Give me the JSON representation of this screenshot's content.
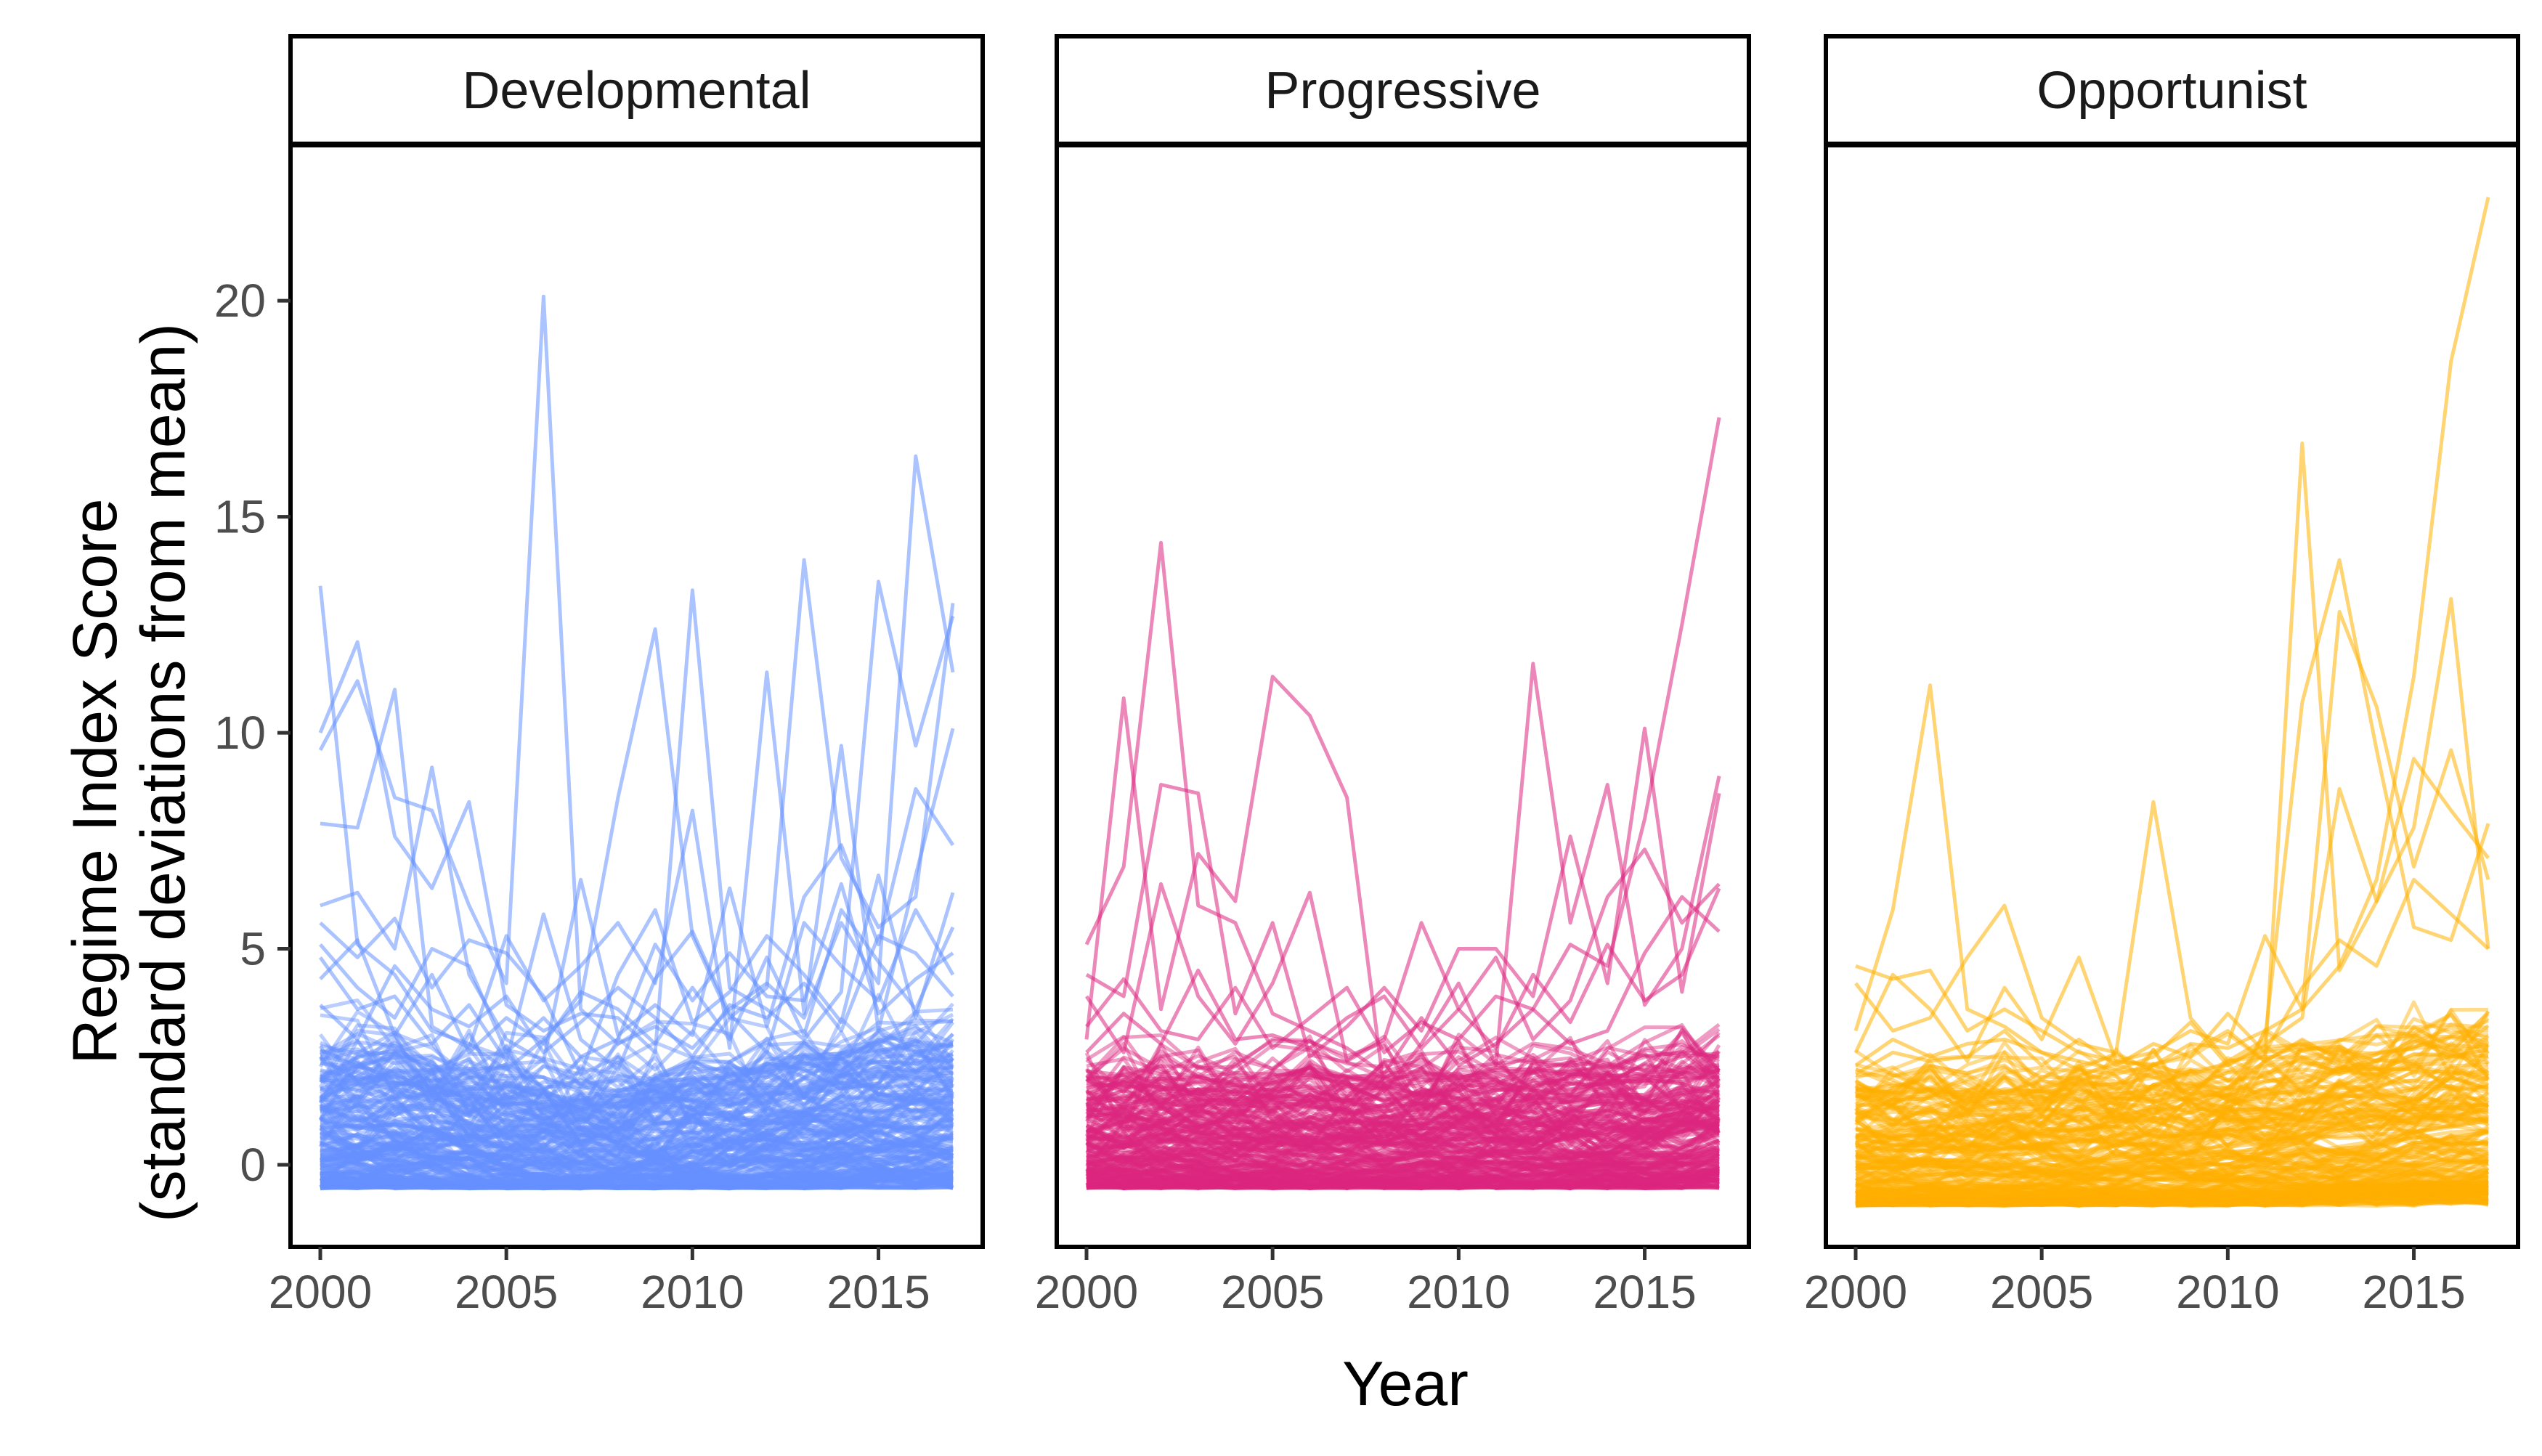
{
  "chart_data": {
    "type": "line",
    "xlabel": "Year",
    "ylabel": [
      "Regime Index Score",
      "(standard deviations from mean)"
    ],
    "xlim": [
      1999.2,
      2017.8
    ],
    "ylim": [
      -1.9,
      23.6
    ],
    "x_ticks": [
      2000,
      2005,
      2010,
      2015
    ],
    "x_tick_labels": [
      "2000",
      "2005",
      "2010",
      "2015"
    ],
    "y_ticks": [
      0,
      5,
      10,
      15,
      20
    ],
    "y_tick_labels": [
      "0",
      "5",
      "10",
      "15",
      "20"
    ],
    "grid": false,
    "legend": "none",
    "years": [
      2000,
      2001,
      2002,
      2003,
      2004,
      2005,
      2006,
      2007,
      2008,
      2009,
      2010,
      2011,
      2012,
      2013,
      2014,
      2015,
      2016,
      2017
    ],
    "panels": [
      {
        "name": "Developmental",
        "color": "#6691FF",
        "highlight_series": [
          {
            "values": [
              9.6,
              11.2,
              8.5,
              8.2,
              6.0,
              4.2,
              20.1,
              3.6,
              2.8,
              3.2,
              2.7,
              3.6,
              4.2,
              3.4,
              5.6,
              4.2,
              16.4,
              11.4
            ]
          },
          {
            "values": [
              13.4,
              5.1,
              4.4,
              3.1,
              2.8,
              2.2,
              2.9,
              3.8,
              8.5,
              12.4,
              5.3,
              3.4,
              4.1,
              14.0,
              7.1,
              5.5,
              6.2,
              13.0
            ]
          },
          {
            "values": [
              10.0,
              12.1,
              7.6,
              6.4,
              8.4,
              3.7,
              3.1,
              3.5,
              3.4,
              2.6,
              13.3,
              4.1,
              3.6,
              2.9,
              4.0,
              13.5,
              9.7,
              12.7
            ]
          },
          {
            "values": [
              7.9,
              7.8,
              11.0,
              3.2,
              2.7,
              5.3,
              3.8,
              4.6,
              5.6,
              4.2,
              8.2,
              2.7,
              11.4,
              3.5,
              9.7,
              3.1,
              6.7,
              10.1
            ]
          },
          {
            "values": [
              6.0,
              6.3,
              5.0,
              9.2,
              4.4,
              2.9,
              2.4,
              6.6,
              3.0,
              3.7,
              3.0,
              6.4,
              3.2,
              6.2,
              7.4,
              5.1,
              8.7,
              7.4
            ]
          },
          {
            "values": [
              5.6,
              4.8,
              5.7,
              4.1,
              5.2,
              4.9,
              3.9,
              2.1,
              4.4,
              5.9,
              3.3,
              4.0,
              5.3,
              4.4,
              3.3,
              6.7,
              3.4,
              6.3
            ]
          },
          {
            "values": [
              4.8,
              3.6,
              3.9,
              2.8,
              3.7,
              2.4,
              5.8,
              2.9,
              2.2,
              4.3,
              5.4,
              3.5,
              2.6,
              5.6,
              4.6,
              3.8,
              5.9,
              4.4
            ]
          },
          {
            "values": [
              4.3,
              5.2,
              3.0,
              4.4,
              2.6,
              3.4,
              2.8,
              4.0,
              3.6,
              2.8,
              4.1,
              2.9,
              4.8,
              3.0,
              5.9,
              4.7,
              3.6,
              5.5
            ]
          },
          {
            "values": [
              3.7,
              2.9,
              4.6,
              3.6,
              3.2,
              3.9,
              2.6,
              3.3,
              4.1,
              3.4,
              2.5,
              3.7,
              3.4,
              4.2,
              3.1,
              5.3,
              4.9,
              3.9
            ]
          },
          {
            "values": [
              5.1,
              4.1,
              3.4,
              5.0,
              4.6,
              2.6,
              3.4,
              2.5,
              2.9,
              5.1,
              3.8,
              4.9,
              3.9,
              3.8,
              6.5,
              3.5,
              4.3,
              4.9
            ]
          }
        ],
        "bulk": {
          "count": 200,
          "seed": 11,
          "base_min": -0.55,
          "base_max": 2.6,
          "trend": [
            0,
            0,
            0,
            -0.1,
            -0.2,
            -0.3,
            -0.4,
            -0.45,
            -0.45,
            -0.4,
            -0.3,
            -0.2,
            -0.1,
            0,
            0.1,
            0.2,
            0.25,
            0.3
          ]
        }
      },
      {
        "name": "Progressive",
        "color": "#DC267F",
        "highlight_series": [
          {
            "values": [
              5.1,
              6.9,
              14.4,
              6.0,
              5.6,
              3.5,
              3.1,
              2.7,
              2.1,
              3.4,
              2.3,
              2.8,
              3.6,
              5.1,
              4.6,
              8.0,
              12.5,
              17.3
            ]
          },
          {
            "values": [
              2.9,
              10.8,
              3.6,
              7.2,
              6.1,
              11.3,
              10.4,
              8.5,
              1.7,
              2.8,
              4.2,
              2.3,
              11.6,
              5.6,
              8.8,
              3.7,
              5.0,
              9.0
            ]
          },
          {
            "values": [
              4.4,
              3.9,
              8.8,
              8.6,
              3.5,
              5.6,
              2.5,
              3.2,
              4.1,
              3.1,
              5.0,
              5.0,
              3.9,
              7.6,
              4.2,
              10.1,
              4.0,
              8.6
            ]
          },
          {
            "values": [
              3.9,
              2.6,
              6.5,
              3.9,
              2.8,
              4.2,
              6.3,
              2.4,
              2.9,
              5.6,
              3.6,
              4.8,
              2.9,
              3.8,
              6.2,
              7.3,
              5.6,
              6.5
            ]
          },
          {
            "values": [
              3.2,
              4.3,
              3.1,
              2.9,
              4.1,
              2.7,
              3.4,
              4.1,
              2.6,
              3.3,
              2.9,
              3.9,
              3.6,
              2.8,
              3.1,
              4.9,
              6.2,
              5.4
            ]
          },
          {
            "values": [
              2.6,
              3.5,
              2.8,
              4.5,
              2.9,
              3.0,
              2.7,
              3.4,
              3.9,
              2.7,
              3.6,
              2.7,
              4.4,
              3.3,
              5.1,
              3.8,
              4.4,
              6.4
            ]
          }
        ],
        "bulk": {
          "count": 200,
          "seed": 23,
          "base_min": -0.55,
          "base_max": 2.2,
          "trend": [
            0,
            0,
            0,
            0,
            0,
            0,
            0,
            -0.05,
            -0.05,
            0,
            0,
            0,
            0.05,
            0.1,
            0.15,
            0.2,
            0.3,
            0.4
          ]
        }
      },
      {
        "name": "Opportunist",
        "color": "#FFB000",
        "highlight_series": [
          {
            "values": [
              4.6,
              4.3,
              4.5,
              3.1,
              3.6,
              3.1,
              2.6,
              2.4,
              2.6,
              3.1,
              2.8,
              5.3,
              3.6,
              4.6,
              6.6,
              11.3,
              18.6,
              22.4
            ]
          },
          {
            "values": [
              3.1,
              5.9,
              11.1,
              3.6,
              3.2,
              2.6,
              2.2,
              2.1,
              2.3,
              2.6,
              3.1,
              2.4,
              16.7,
              4.5,
              6.1,
              7.8,
              13.1,
              5.0
            ]
          },
          {
            "values": [
              4.2,
              3.1,
              3.4,
              4.8,
              6.0,
              3.4,
              2.8,
              2.6,
              8.4,
              3.4,
              2.4,
              2.9,
              10.7,
              14.0,
              9.6,
              5.5,
              5.2,
              7.9
            ]
          },
          {
            "values": [
              2.6,
              4.4,
              3.6,
              2.4,
              4.1,
              2.9,
              4.8,
              2.4,
              2.3,
              2.8,
              2.7,
              3.1,
              3.6,
              12.8,
              10.6,
              6.9,
              9.6,
              6.6
            ]
          },
          {
            "values": [
              2.3,
              2.9,
              2.5,
              2.8,
              2.9,
              2.6,
              2.4,
              2.2,
              2.5,
              3.3,
              2.3,
              2.8,
              3.4,
              8.7,
              6.1,
              9.4,
              8.2,
              7.1
            ]
          },
          {
            "values": [
              2.1,
              2.6,
              2.4,
              2.5,
              3.1,
              2.3,
              2.9,
              2.3,
              2.8,
              2.5,
              3.5,
              2.6,
              4.1,
              5.2,
              4.6,
              6.6,
              5.8,
              5.0
            ]
          }
        ],
        "bulk": {
          "count": 200,
          "seed": 37,
          "base_min": -0.95,
          "base_max": 2.0,
          "trend": [
            0,
            0,
            0.05,
            0.05,
            0.05,
            0.05,
            0.1,
            0.1,
            0.15,
            0.15,
            0.25,
            0.35,
            0.45,
            0.55,
            0.7,
            0.85,
            0.95,
            1.05
          ]
        }
      }
    ]
  }
}
